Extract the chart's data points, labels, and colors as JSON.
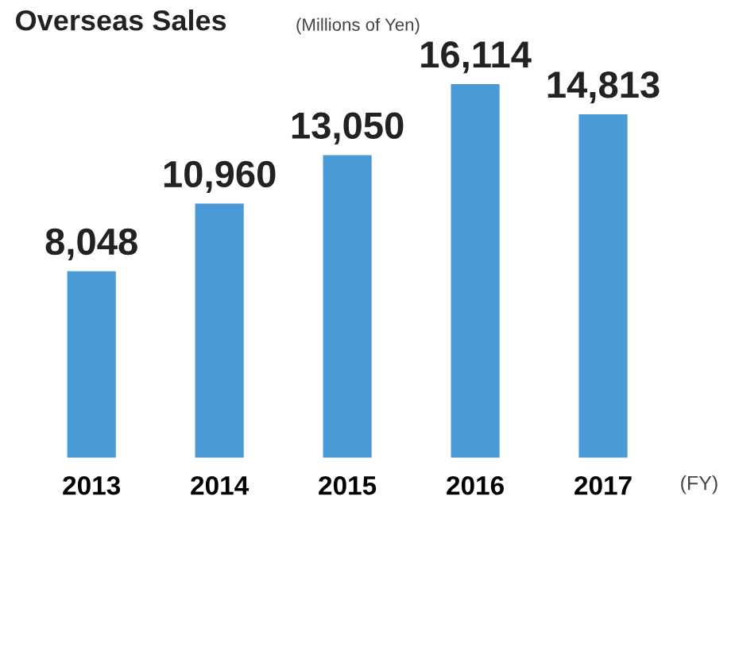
{
  "chart_data": {
    "type": "bar",
    "title": "Overseas Sales",
    "subtitle": "(Millions of Yen)",
    "xlabel": "(FY)",
    "categories": [
      "2013",
      "2014",
      "2015",
      "2016",
      "2017"
    ],
    "values": [
      8048,
      10960,
      13050,
      16114,
      14813
    ],
    "value_labels": [
      "8,048",
      "10,960",
      "13,050",
      "16,114",
      "14,813"
    ],
    "color": "#4a9ad6",
    "grid": false,
    "legend": false
  }
}
